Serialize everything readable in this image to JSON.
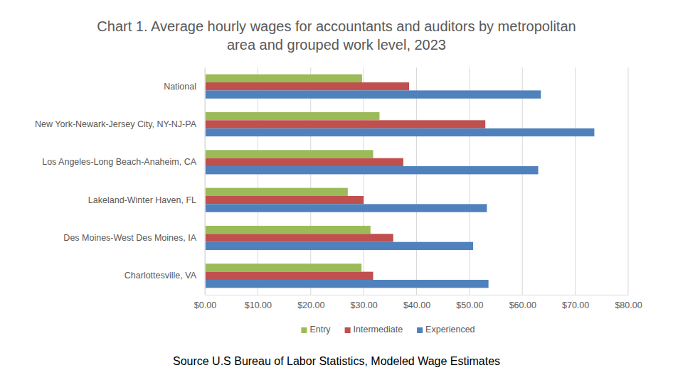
{
  "chart_data": {
    "type": "bar",
    "orientation": "horizontal",
    "title": "Chart 1. Average hourly wages for accountants and auditors by metropolitan area and grouped work level, 2023",
    "source": "Source U.S Bureau of Labor Statistics, Modeled Wage Estimates",
    "categories": [
      "National",
      "New York-Newark-Jersey City, NY-NJ-PA",
      "Los Angeles-Long Beach-Anaheim, CA",
      "Lakeland-Winter Haven, FL",
      "Des Moines-West Des Moines, IA",
      "Charlottesville, VA"
    ],
    "series": [
      {
        "name": "Entry",
        "color": "#9bbb59",
        "values": [
          29.7,
          33.0,
          31.8,
          27.0,
          31.3,
          29.6
        ]
      },
      {
        "name": "Intermediate",
        "color": "#c0504d",
        "values": [
          38.6,
          53.0,
          37.5,
          30.0,
          35.6,
          31.8
        ]
      },
      {
        "name": "Experienced",
        "color": "#4f81bd",
        "values": [
          63.5,
          73.6,
          63.0,
          53.3,
          50.7,
          53.6
        ]
      }
    ],
    "xlim": [
      0,
      80
    ],
    "xticks": [
      {
        "value": 0,
        "label": "$0.00"
      },
      {
        "value": 10,
        "label": "$10.00"
      },
      {
        "value": 20,
        "label": "$20.00"
      },
      {
        "value": 30,
        "label": "$30.00"
      },
      {
        "value": 40,
        "label": "$40.00"
      },
      {
        "value": 50,
        "label": "$50.00"
      },
      {
        "value": 60,
        "label": "$60.00"
      },
      {
        "value": 70,
        "label": "$70.00"
      },
      {
        "value": 80,
        "label": "$80.00"
      }
    ],
    "grid": true,
    "legend": "bottom"
  }
}
